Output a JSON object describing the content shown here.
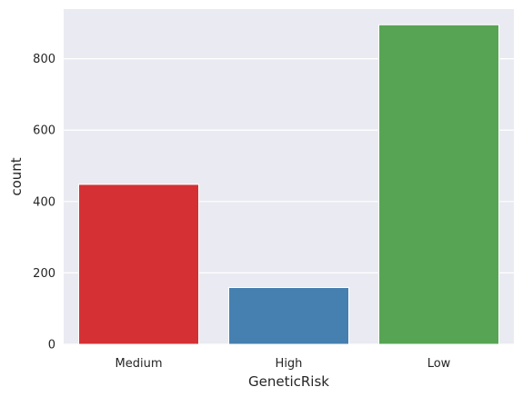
{
  "chart_data": {
    "type": "bar",
    "categories": [
      "Medium",
      "High",
      "Low"
    ],
    "values": [
      448,
      159,
      895
    ],
    "colors": [
      "#d53135",
      "#4580b0",
      "#58a455"
    ],
    "xlabel": "GeneticRisk",
    "ylabel": "count",
    "ylim": [
      0,
      939
    ],
    "yticks": [
      0,
      200,
      400,
      600,
      800
    ],
    "ytick_labels": [
      "0",
      "200",
      "400",
      "600",
      "800"
    ],
    "background": "#eaeaf2",
    "grid": true,
    "grid_color": "#ffffff"
  }
}
